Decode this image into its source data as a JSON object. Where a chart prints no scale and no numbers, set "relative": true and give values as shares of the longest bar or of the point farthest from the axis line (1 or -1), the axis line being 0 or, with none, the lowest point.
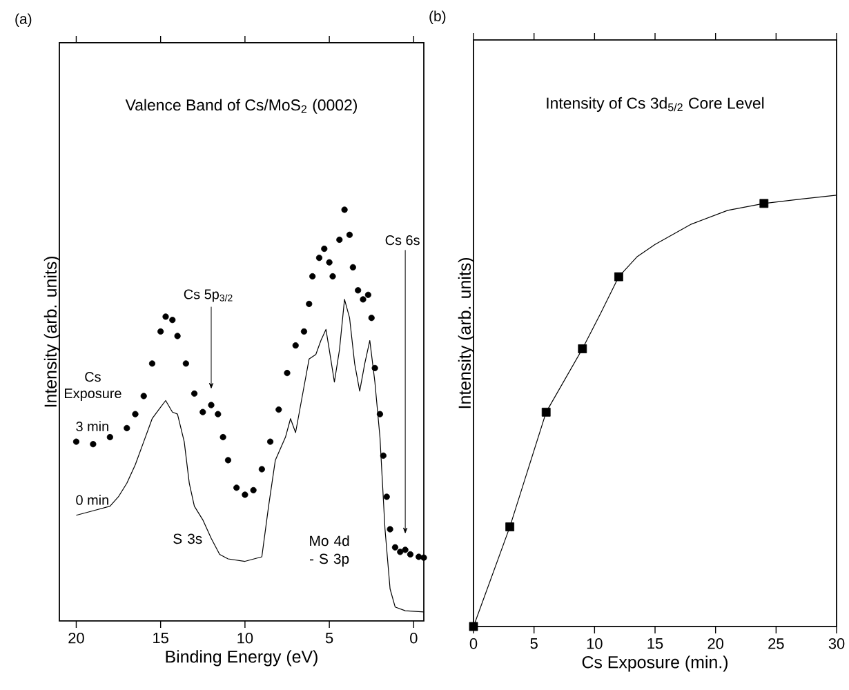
{
  "chart_data": [
    {
      "type": "line",
      "title": "(a)",
      "subtitle": "Valence Band of Cs/MoS$_{2}$ (0002)",
      "xlabel": "Binding Energy (eV)",
      "ylabel": "Intensity (arb. units)",
      "relative": true,
      "xlim": [
        21,
        -0.6
      ],
      "xticks": [
        20,
        15,
        10,
        5,
        0
      ],
      "series": [
        {
          "name": "3 min",
          "type": "scatter",
          "marker": "circle",
          "color": "#000000",
          "x": [
            20,
            19,
            18,
            17,
            16.5,
            16,
            15.5,
            15,
            14.7,
            14.3,
            14,
            13.5,
            13,
            12.5,
            12,
            11.6,
            11.3,
            11,
            10.5,
            10,
            9.5,
            9,
            8.5,
            8,
            7.5,
            7,
            6.5,
            6.2,
            6,
            5.6,
            5.3,
            5.0,
            4.8,
            4.4,
            4.1,
            3.8,
            3.6,
            3.3,
            3.0,
            2.7,
            2.5,
            2.3,
            2.0,
            1.8,
            1.6,
            1.4,
            1.1,
            0.8,
            0.5,
            0.2,
            -0.3,
            -0.6
          ],
          "values": [
            0.436,
            0.43,
            0.447,
            0.469,
            0.503,
            0.547,
            0.626,
            0.704,
            0.74,
            0.732,
            0.693,
            0.626,
            0.553,
            0.508,
            0.525,
            0.503,
            0.447,
            0.391,
            0.324,
            0.307,
            0.318,
            0.369,
            0.436,
            0.514,
            0.603,
            0.67,
            0.704,
            0.771,
            0.838,
            0.883,
            0.905,
            0.872,
            0.838,
            0.927,
            1.0,
            0.939,
            0.86,
            0.804,
            0.782,
            0.793,
            0.737,
            0.615,
            0.503,
            0.402,
            0.302,
            0.223,
            0.179,
            0.168,
            0.173,
            0.162,
            0.156,
            0.154
          ]
        },
        {
          "name": "0 min",
          "color": "#000000",
          "x": [
            20,
            19,
            18,
            17.5,
            17,
            16.5,
            16,
            15.5,
            15,
            14.7,
            14.3,
            14,
            13.6,
            13.3,
            13,
            12.5,
            12,
            11.5,
            11,
            10,
            9,
            8.6,
            8.2,
            7.6,
            7.3,
            7.0,
            6.5,
            6.2,
            5.8,
            5.5,
            5.2,
            5.0,
            4.7,
            4.4,
            4.1,
            3.8,
            3.5,
            3.2,
            2.9,
            2.6,
            2.3,
            2.0,
            1.7,
            1.4,
            1.1,
            0.5,
            -0.6
          ],
          "values": [
            0.257,
            0.268,
            0.279,
            0.302,
            0.335,
            0.38,
            0.436,
            0.492,
            0.52,
            0.536,
            0.508,
            0.503,
            0.436,
            0.335,
            0.279,
            0.246,
            0.201,
            0.162,
            0.151,
            0.145,
            0.156,
            0.279,
            0.391,
            0.447,
            0.492,
            0.458,
            0.57,
            0.637,
            0.648,
            0.682,
            0.709,
            0.659,
            0.581,
            0.659,
            0.782,
            0.737,
            0.626,
            0.559,
            0.626,
            0.682,
            0.581,
            0.447,
            0.223,
            0.078,
            0.034,
            0.025,
            0.022
          ]
        }
      ],
      "annotations": [
        "Cs Exposure",
        "Cs 5p$_{3/2}$",
        "Cs 6s",
        "S 3s",
        "Mo 4d - S 3p"
      ]
    },
    {
      "type": "scatter",
      "title": "(b)",
      "subtitle": "Intensity of Cs 3d$_{5/2}$ Core Level",
      "xlabel": "Cs Exposure (min.)",
      "ylabel": "Intensity (arb. units)",
      "relative": true,
      "xlim": [
        0,
        30
      ],
      "xticks": [
        0,
        5,
        10,
        15,
        20,
        25,
        30
      ],
      "series": [
        {
          "marker": "square",
          "color": "#000000",
          "x": [
            0,
            3,
            6,
            9,
            12,
            24
          ],
          "values": [
            0,
            0.231,
            0.497,
            0.644,
            0.811,
            0.981
          ]
        },
        {
          "type": "line",
          "color": "#000000",
          "x": [
            0,
            3,
            6,
            9,
            10.5,
            12,
            13.5,
            15,
            18,
            21,
            24,
            27,
            30
          ],
          "values": [
            0,
            0.231,
            0.497,
            0.644,
            0.726,
            0.811,
            0.857,
            0.886,
            0.933,
            0.965,
            0.981,
            0.991,
            1.0
          ]
        }
      ]
    }
  ]
}
